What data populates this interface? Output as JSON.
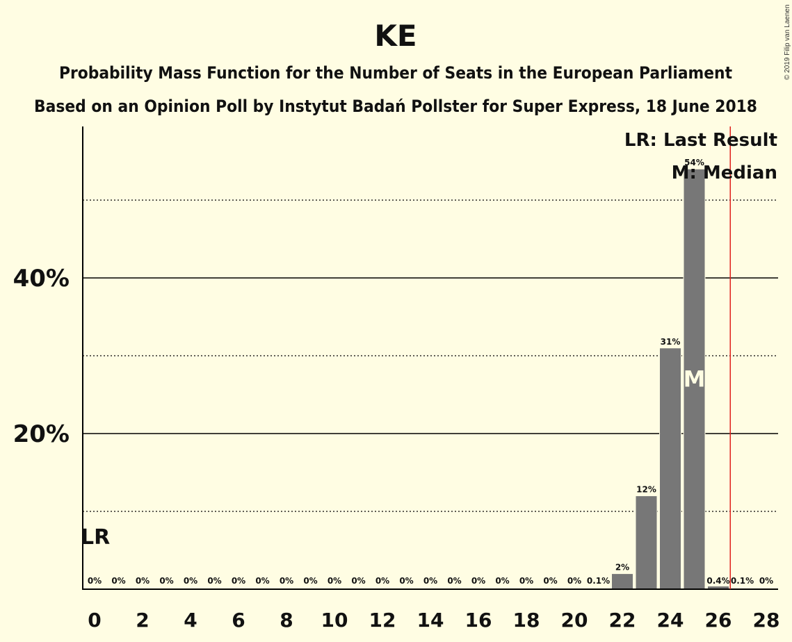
{
  "chart_data": {
    "type": "bar",
    "title": "KE",
    "subtitle_1": "Probability Mass Function for the Number of Seats in the European Parliament",
    "subtitle_2": "Based on an Opinion Poll by Instytut Badań Pollster for Super Express, 18 June 2018",
    "copyright": "© 2019 Filip van Laenen",
    "x": [
      0,
      1,
      2,
      3,
      4,
      5,
      6,
      7,
      8,
      9,
      10,
      11,
      12,
      13,
      14,
      15,
      16,
      17,
      18,
      19,
      20,
      21,
      22,
      23,
      24,
      25,
      26,
      27,
      28
    ],
    "values": [
      0,
      0,
      0,
      0,
      0,
      0,
      0,
      0,
      0,
      0,
      0,
      0,
      0,
      0,
      0,
      0,
      0,
      0,
      0,
      0,
      0,
      0.1,
      2,
      12,
      31,
      54,
      0.4,
      0.1,
      0
    ],
    "value_labels": [
      "0%",
      "0%",
      "0%",
      "0%",
      "0%",
      "0%",
      "0%",
      "0%",
      "0%",
      "0%",
      "0%",
      "0%",
      "0%",
      "0%",
      "0%",
      "0%",
      "0%",
      "0%",
      "0%",
      "0%",
      "0%",
      "0.1%",
      "2%",
      "12%",
      "31%",
      "54%",
      "0.4%",
      "0.1%",
      "0%"
    ],
    "x_tick_labels": [
      "0",
      "2",
      "4",
      "6",
      "8",
      "10",
      "12",
      "14",
      "16",
      "18",
      "20",
      "22",
      "24",
      "26",
      "28"
    ],
    "y_tick_labels": [
      "20%",
      "40%"
    ],
    "ylim": [
      0,
      58
    ],
    "xlim": [
      -0.5,
      28.5
    ],
    "major_gridlines": [
      20,
      40
    ],
    "minor_gridlines": [
      10,
      30,
      50
    ],
    "last_result": 26.5,
    "last_result_label": "LR",
    "median_seat": 25,
    "median_label": "M",
    "legend": [
      "LR: Last Result",
      "M: Median"
    ],
    "legend_position": "top-right",
    "colors": {
      "bar": "#777777",
      "background": "#FFFDE3",
      "last_result_line": "#E0201B",
      "axis": "#000000"
    }
  }
}
